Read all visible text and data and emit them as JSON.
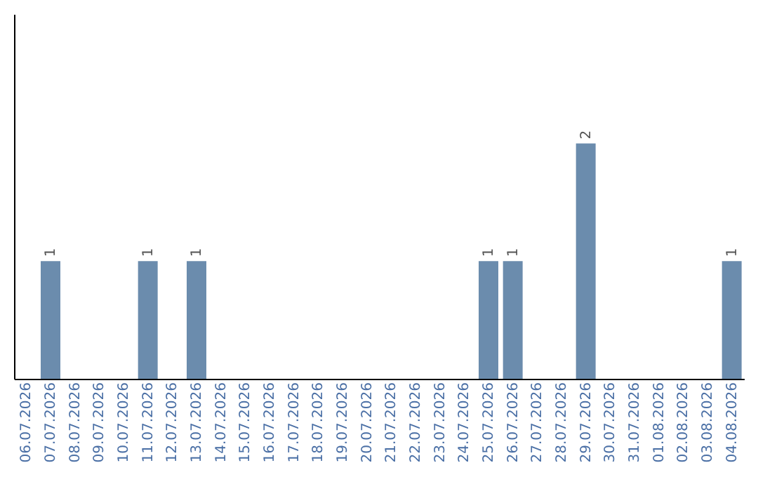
{
  "chart_data": {
    "type": "bar",
    "categories": [
      "06.07.2026",
      "07.07.2026",
      "08.07.2026",
      "09.07.2026",
      "10.07.2026",
      "11.07.2026",
      "12.07.2026",
      "13.07.2026",
      "14.07.2026",
      "15.07.2026",
      "16.07.2026",
      "17.07.2026",
      "18.07.2026",
      "19.07.2026",
      "20.07.2026",
      "21.07.2026",
      "22.07.2026",
      "23.07.2026",
      "24.07.2026",
      "25.07.2026",
      "26.07.2026",
      "27.07.2026",
      "28.07.2026",
      "29.07.2026",
      "30.07.2026",
      "31.07.2026",
      "01.08.2026",
      "02.08.2026",
      "03.08.2026",
      "04.08.2026"
    ],
    "values": [
      0,
      1,
      0,
      0,
      0,
      1,
      0,
      1,
      0,
      0,
      0,
      0,
      0,
      0,
      0,
      0,
      0,
      0,
      0,
      1,
      1,
      0,
      0,
      2,
      0,
      0,
      0,
      0,
      0,
      1
    ],
    "color": "#6b8cad",
    "ylim": [
      0,
      3.1
    ],
    "value_labels": [
      null,
      "1",
      null,
      null,
      null,
      "1",
      null,
      "1",
      null,
      null,
      null,
      null,
      null,
      null,
      null,
      null,
      null,
      null,
      null,
      "1",
      "1",
      null,
      null,
      "2",
      null,
      null,
      null,
      null,
      null,
      "1"
    ],
    "tick_labels": "x"
  }
}
